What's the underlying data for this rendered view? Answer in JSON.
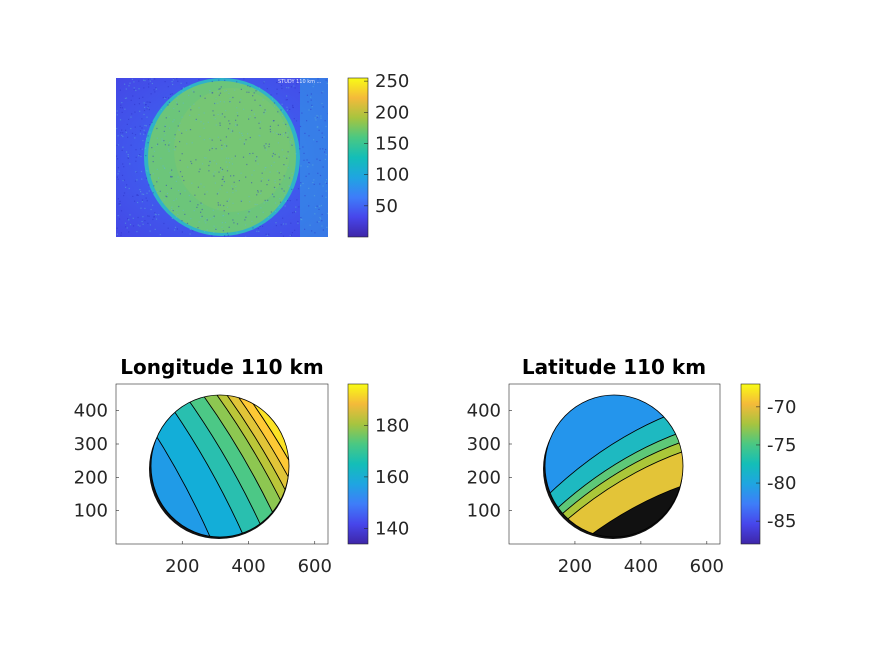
{
  "chart_data": [
    {
      "type": "heatmap",
      "title": "",
      "description_stamp": "STUDY 110 km ...",
      "axes_visible": false,
      "colormap": "parula",
      "clim": [
        0,
        255
      ],
      "colorbar_ticks": [
        50,
        100,
        150,
        200,
        250
      ],
      "colorbar_tick_labels": [
        "50",
        "100",
        "150",
        "200",
        "250"
      ],
      "background_level": 60,
      "disk_level": 165
    },
    {
      "type": "heatmap",
      "title": "Longitude 110 km",
      "colormap": "parula",
      "clim": [
        134,
        196
      ],
      "xlim": [
        0,
        640
      ],
      "ylim": [
        0,
        480
      ],
      "xticks": [
        200,
        400,
        600
      ],
      "xtick_labels": [
        "200",
        "400",
        "600"
      ],
      "yticks": [
        100,
        200,
        300,
        400
      ],
      "ytick_labels": [
        "100",
        "200",
        "300",
        "400"
      ],
      "colorbar_ticks": [
        140,
        160,
        180
      ],
      "colorbar_tick_labels": [
        "140",
        "160",
        "180"
      ],
      "disk_center": [
        320,
        280
      ],
      "disk_radius": 210,
      "band_values": [
        156,
        160,
        166,
        171,
        176,
        180,
        184,
        188,
        192
      ]
    },
    {
      "type": "heatmap",
      "title": "Latitude 110 km",
      "colormap": "parula",
      "clim": [
        -88,
        -67
      ],
      "xlim": [
        0,
        640
      ],
      "ylim": [
        0,
        480
      ],
      "xticks": [
        200,
        400,
        600
      ],
      "xtick_labels": [
        "200",
        "400",
        "600"
      ],
      "yticks": [
        100,
        200,
        300,
        400
      ],
      "ytick_labels": [
        "100",
        "200",
        "300",
        "400"
      ],
      "colorbar_ticks": [
        -85,
        -80,
        -75,
        -70
      ],
      "colorbar_tick_labels": [
        "-85",
        "-80",
        "-75",
        "-70"
      ],
      "disk_center": [
        320,
        280
      ],
      "disk_radius": 210,
      "band_values": [
        -81,
        -78,
        -75,
        -73,
        -71
      ]
    }
  ]
}
